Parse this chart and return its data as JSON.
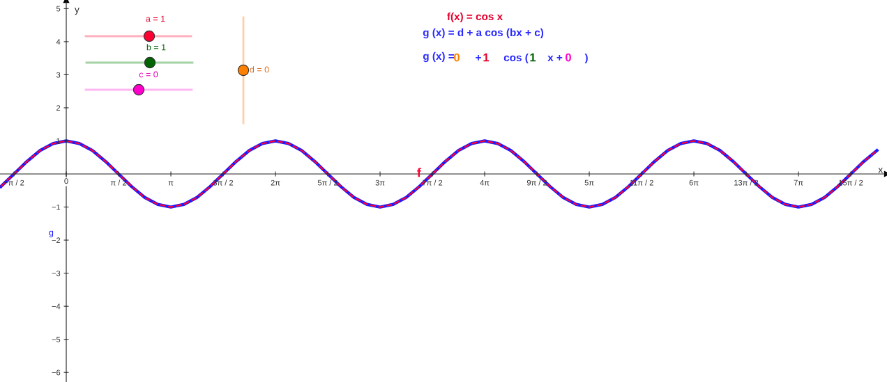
{
  "chart_data": {
    "type": "line",
    "xlabel": "x",
    "ylabel": "y",
    "xlim": [
      -1.99,
      24.65
    ],
    "ylim": [
      -6.29,
      5.26
    ],
    "xticks": [
      {
        "value": -1.571,
        "label": "−π / 2"
      },
      {
        "value": 0,
        "label": "0"
      },
      {
        "value": 1.571,
        "label": "π / 2"
      },
      {
        "value": 3.142,
        "label": "π"
      },
      {
        "value": 4.712,
        "label": "3π / 2"
      },
      {
        "value": 6.283,
        "label": "2π"
      },
      {
        "value": 7.854,
        "label": "5π / 2"
      },
      {
        "value": 9.425,
        "label": "3π"
      },
      {
        "value": 10.996,
        "label": "7π / 2"
      },
      {
        "value": 12.566,
        "label": "4π"
      },
      {
        "value": 14.137,
        "label": "9π / 2"
      },
      {
        "value": 15.708,
        "label": "5π"
      },
      {
        "value": 17.279,
        "label": "11π / 2"
      },
      {
        "value": 18.85,
        "label": "6π"
      },
      {
        "value": 20.42,
        "label": "13π / 2"
      },
      {
        "value": 21.991,
        "label": "7π"
      },
      {
        "value": 23.562,
        "label": "15π / 2"
      }
    ],
    "yticks": [
      {
        "value": -6,
        "label": "−6"
      },
      {
        "value": -5,
        "label": "−5"
      },
      {
        "value": -4,
        "label": "−4"
      },
      {
        "value": -3,
        "label": "−3"
      },
      {
        "value": -2,
        "label": "−2"
      },
      {
        "value": -1,
        "label": "−1"
      },
      1,
      2,
      3,
      4,
      5
    ],
    "grid": false,
    "legend": false,
    "x": [
      -1.963,
      -1.571,
      -1.178,
      -0.785,
      -0.393,
      0,
      0.393,
      0.785,
      1.178,
      1.571,
      1.963,
      2.356,
      2.749,
      3.142,
      3.534,
      3.927,
      4.32,
      4.712,
      5.105,
      5.498,
      5.89,
      6.283,
      6.676,
      7.069,
      7.461,
      7.854,
      8.247,
      8.639,
      9.032,
      9.425,
      9.817,
      10.21,
      10.603,
      10.996,
      11.388,
      11.781,
      12.174,
      12.566,
      12.959,
      13.352,
      13.744,
      14.137,
      14.53,
      14.923,
      15.315,
      15.708,
      16.101,
      16.493,
      16.886,
      17.279,
      17.671,
      18.064,
      18.457,
      18.85,
      19.242,
      19.635,
      20.028,
      20.42,
      20.813,
      21.206,
      21.598,
      21.991,
      22.384,
      22.777,
      23.169,
      23.562,
      23.955,
      24.347
    ],
    "series": [
      {
        "name": "g",
        "color": "#1a1aff",
        "line_style": "solid",
        "values": [
          -0.38,
          0,
          0.38,
          0.71,
          0.92,
          1,
          0.92,
          0.71,
          0.38,
          0,
          -0.38,
          -0.71,
          -0.92,
          -1,
          -0.92,
          -0.71,
          -0.38,
          0,
          0.38,
          0.71,
          0.92,
          1,
          0.92,
          0.71,
          0.38,
          0,
          -0.38,
          -0.71,
          -0.92,
          -1,
          -0.92,
          -0.71,
          -0.38,
          0,
          0.38,
          0.71,
          0.92,
          1,
          0.92,
          0.71,
          0.38,
          0,
          -0.38,
          -0.71,
          -0.92,
          -1,
          -0.92,
          -0.71,
          -0.38,
          0,
          0.38,
          0.71,
          0.92,
          1,
          0.92,
          0.71,
          0.38,
          0,
          -0.38,
          -0.71,
          -0.92,
          -1,
          -0.92,
          -0.71,
          -0.38,
          0,
          0.38,
          0.71
        ]
      },
      {
        "name": "f",
        "color": "#ff0033",
        "line_style": "dashed",
        "values": [
          -0.38,
          0,
          0.38,
          0.71,
          0.92,
          1,
          0.92,
          0.71,
          0.38,
          0,
          -0.38,
          -0.71,
          -0.92,
          -1,
          -0.92,
          -0.71,
          -0.38,
          0,
          0.38,
          0.71,
          0.92,
          1,
          0.92,
          0.71,
          0.38,
          0,
          -0.38,
          -0.71,
          -0.92,
          -1,
          -0.92,
          -0.71,
          -0.38,
          0,
          0.38,
          0.71,
          0.92,
          1,
          0.92,
          0.71,
          0.38,
          0,
          -0.38,
          -0.71,
          -0.92,
          -1,
          -0.92,
          -0.71,
          -0.38,
          0,
          0.38,
          0.71,
          0.92,
          1,
          0.92,
          0.71,
          0.38,
          0,
          -0.38,
          -0.71,
          -0.92,
          -1,
          -0.92,
          -0.71,
          -0.38,
          0,
          0.38,
          0.71
        ]
      }
    ],
    "annotations": [
      "f(x) = cos x",
      "g (x) = d + a cos (bx + c)",
      "g (x) =",
      "0",
      "+",
      "1",
      "cos (",
      "1",
      "x +",
      "0",
      ")",
      "a = 1",
      "b = 1",
      "c = 0",
      "d = 0"
    ]
  }
}
